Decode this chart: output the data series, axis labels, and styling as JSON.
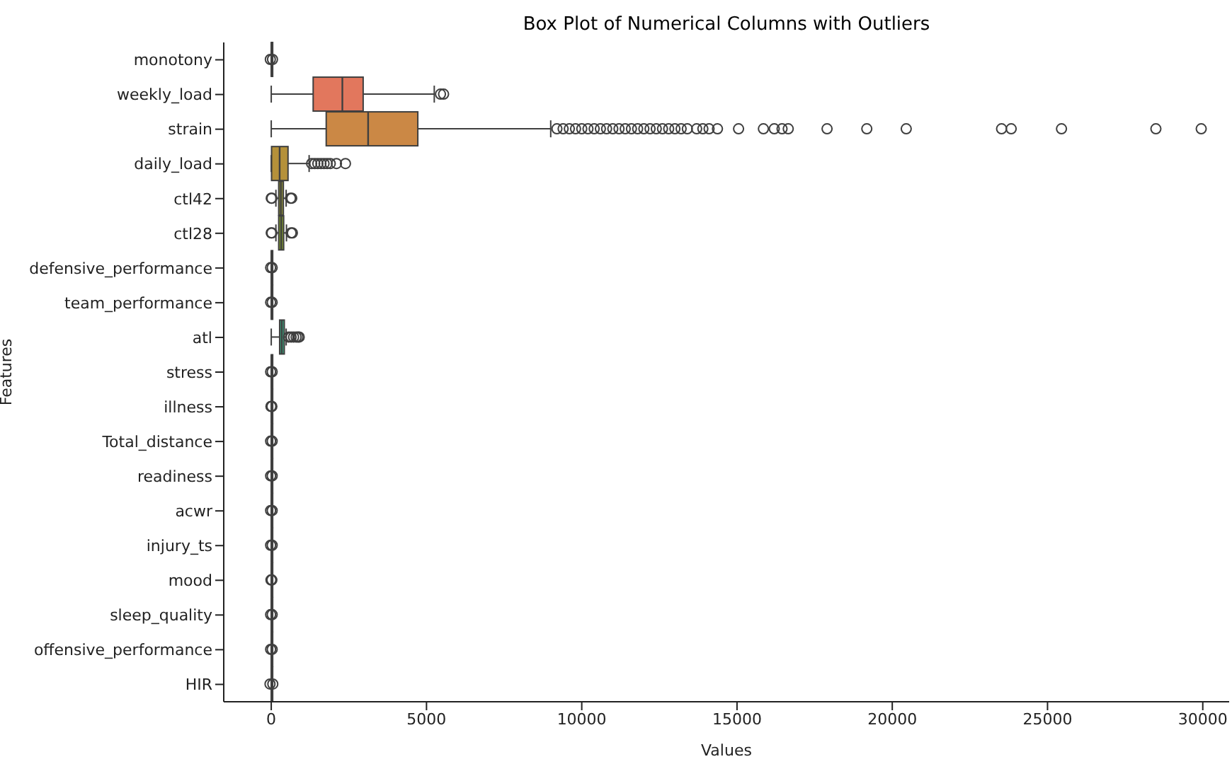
{
  "chart_data": {
    "type": "box",
    "orientation": "horizontal",
    "title": "Box Plot of Numerical Columns with Outliers",
    "xlabel": "Values",
    "ylabel": "Features",
    "categories": [
      "monotony",
      "weekly_load",
      "strain",
      "daily_load",
      "ctl42",
      "ctl28",
      "defensive_performance",
      "team_performance",
      "atl",
      "stress",
      "illness",
      "Total_distance",
      "readiness",
      "acwr",
      "injury_ts",
      "mood",
      "sleep_quality",
      "offensive_performance",
      "HIR"
    ],
    "colors": [
      "#d9636b",
      "#e2775d",
      "#cb8845",
      "#b5913a",
      "#8e8f3a",
      "#7e9731",
      "#6e9c3c",
      "#4a9f5a",
      "#3ba37f",
      "#3aa08f",
      "#3c9ea0",
      "#3f9bb0",
      "#4896c4",
      "#6c8ed2",
      "#9185d4",
      "#b27acb",
      "#c86fbd",
      "#d569a7",
      "#d96686"
    ],
    "boxes": [
      {
        "low": 0,
        "q1": 1,
        "median": 2,
        "q3": 3,
        "high": 5,
        "outliers": [
          -30,
          40
        ]
      },
      {
        "low": 0,
        "q1": 1350,
        "median": 2290,
        "q3": 2960,
        "high": 5250,
        "outliers": [
          5450,
          5550
        ]
      },
      {
        "low": 0,
        "q1": 1770,
        "median": 3120,
        "q3": 4720,
        "high": 9000,
        "outliers": [
          9200,
          9400,
          9600,
          9800,
          10000,
          10200,
          10400,
          10600,
          10800,
          11000,
          11200,
          11400,
          11600,
          11800,
          12000,
          12200,
          12400,
          12600,
          12800,
          13000,
          13200,
          13400,
          13700,
          13900,
          14100,
          14370,
          15050,
          15850,
          16200,
          16450,
          16650,
          17900,
          19180,
          20450,
          23520,
          23830,
          25450,
          28490,
          29950
        ]
      },
      {
        "low": 0,
        "q1": 10,
        "median": 270,
        "q3": 540,
        "high": 1220,
        "outliers": [
          1300,
          1400,
          1500,
          1600,
          1700,
          1800,
          1900,
          2100,
          2390
        ]
      },
      {
        "low": 150,
        "q1": 240,
        "median": 310,
        "q3": 390,
        "high": 480,
        "outliers": [
          0,
          20,
          620,
          660
        ]
      },
      {
        "low": 150,
        "q1": 240,
        "median": 320,
        "q3": 400,
        "high": 490,
        "outliers": [
          0,
          20,
          640,
          680
        ]
      },
      {
        "low": 0,
        "q1": 1,
        "median": 2,
        "q3": 3,
        "high": 5,
        "outliers": [
          -20,
          30
        ]
      },
      {
        "low": 0,
        "q1": 1,
        "median": 2,
        "q3": 3,
        "high": 5,
        "outliers": [
          -20,
          30
        ]
      },
      {
        "low": 0,
        "q1": 270,
        "median": 340,
        "q3": 420,
        "high": 480,
        "outliers": [
          560,
          640,
          720,
          800,
          860,
          900
        ]
      },
      {
        "low": 0,
        "q1": 1,
        "median": 2,
        "q3": 3,
        "high": 5,
        "outliers": [
          -20,
          30
        ]
      },
      {
        "low": 0,
        "q1": 1,
        "median": 2,
        "q3": 3,
        "high": 5,
        "outliers": [
          -10,
          20
        ]
      },
      {
        "low": 0,
        "q1": 1,
        "median": 2,
        "q3": 3,
        "high": 5,
        "outliers": [
          -20,
          30
        ]
      },
      {
        "low": 0,
        "q1": 1,
        "median": 2,
        "q3": 3,
        "high": 5,
        "outliers": [
          -20,
          30
        ]
      },
      {
        "low": 0,
        "q1": 1,
        "median": 2,
        "q3": 3,
        "high": 5,
        "outliers": [
          -20,
          30
        ]
      },
      {
        "low": 0,
        "q1": 1,
        "median": 2,
        "q3": 3,
        "high": 5,
        "outliers": [
          -20,
          30
        ]
      },
      {
        "low": 0,
        "q1": 1,
        "median": 2,
        "q3": 3,
        "high": 5,
        "outliers": [
          -10,
          20
        ]
      },
      {
        "low": 0,
        "q1": 1,
        "median": 2,
        "q3": 3,
        "high": 5,
        "outliers": [
          -20,
          30
        ]
      },
      {
        "low": 0,
        "q1": 1,
        "median": 2,
        "q3": 3,
        "high": 5,
        "outliers": [
          -20,
          30
        ]
      },
      {
        "low": 0,
        "q1": 1,
        "median": 2,
        "q3": 3,
        "high": 5,
        "outliers": [
          -40,
          50
        ]
      }
    ],
    "xlim": [
      -1530,
      30850
    ],
    "xticks": [
      0,
      5000,
      10000,
      15000,
      20000,
      25000,
      30000
    ]
  }
}
